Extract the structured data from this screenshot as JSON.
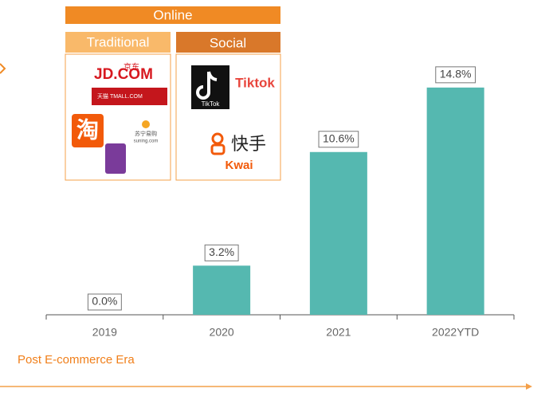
{
  "chart_data": {
    "type": "bar",
    "categories": [
      "2019",
      "2020",
      "2021",
      "2022YTD"
    ],
    "values": [
      0,
      3.2,
      10.6,
      14.8
    ],
    "value_labels": [
      "0.0%",
      "3.2%",
      "10.6%",
      "14.8%"
    ],
    "color": "#55b8b0",
    "ylim": [
      0,
      15
    ],
    "annotations": {
      "online": "Online",
      "traditional": "Traditional",
      "social": "Social",
      "jd": "JD.COM",
      "jd_cn": "京东",
      "tmall": "天猫 TMALL.COM",
      "taobao": "淘",
      "suning": "苏宁易购",
      "suning_en": "suning.com",
      "tiktok_icon": "TikTok",
      "tiktok": "Tiktok",
      "kuaishou": "快手",
      "kwai": "Kwai",
      "era": "Post E-commerce Era"
    }
  }
}
